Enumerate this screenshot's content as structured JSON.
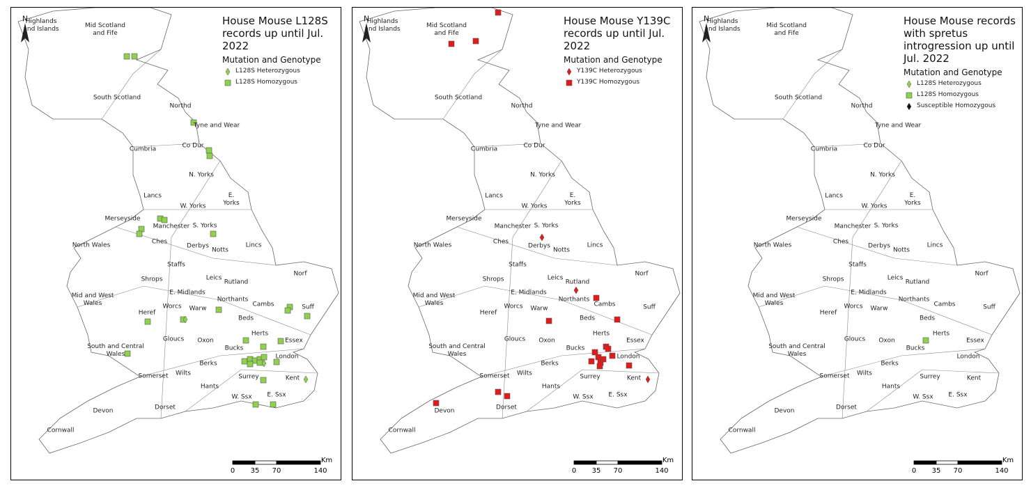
{
  "north": "N",
  "regions": [
    "Highlands and Islands",
    "Mid Scotland and Fife",
    "South Scotland",
    "Northd",
    "Tyne and Wear",
    "Cumbria",
    "Co Dur",
    "N. Yorks",
    "Lancs",
    "W. Yorks",
    "E. Yorks",
    "Merseyside",
    "Manchester",
    "S. Yorks",
    "North Wales",
    "Ches",
    "Derbys",
    "Notts",
    "Lincs",
    "Staffs",
    "Shrops",
    "Leics",
    "Rutland",
    "Norf",
    "Mid and West Wales",
    "E. Midlands",
    "Worcs",
    "Warw",
    "Northants",
    "Cambs",
    "Suff",
    "Heref",
    "Beds",
    "Herts",
    "Gloucs",
    "Oxon",
    "Essex",
    "South and Central Wales",
    "Bucks",
    "London",
    "Berks",
    "Wilts",
    "Somerset",
    "Hants",
    "Surrey",
    "Kent",
    "W. Ssx",
    "E. Ssx",
    "Dorset",
    "Devon",
    "Cornwall"
  ],
  "panels": [
    {
      "title": "House Mouse L128S records up until Jul. 2022",
      "legend": {
        "heading": "Mutation and Genotype",
        "entries": [
          {
            "label": "L128S Heterozygous",
            "symbol": "diamond",
            "color": "#8fd14f"
          },
          {
            "label": "L128S Homozygous",
            "symbol": "square",
            "color": "#8fd14f"
          }
        ]
      }
    },
    {
      "title": "House Mouse Y139C records up until Jul. 2022",
      "legend": {
        "heading": "Mutation and Genotype",
        "entries": [
          {
            "label": "Y139C Heterozygous",
            "symbol": "diamond",
            "color": "#e31a1c"
          },
          {
            "label": "Y139C Homozygous",
            "symbol": "square",
            "color": "#e31a1c"
          }
        ]
      }
    },
    {
      "title": "House Mouse records with spretus introgression up until Jul. 2022",
      "legend": {
        "heading": "Mutation and Genotype",
        "entries": [
          {
            "label": "L128S Heterozygous",
            "symbol": "diamond",
            "color": "#8fd14f"
          },
          {
            "label": "L128S Homozygous",
            "symbol": "square",
            "color": "#8fd14f"
          },
          {
            "label": "Susceptible Homozygous",
            "symbol": "diamond",
            "color": "#111111"
          }
        ]
      }
    }
  ],
  "scale": {
    "labels": [
      "0",
      "35",
      "70",
      "140"
    ],
    "unit": "Km"
  }
}
